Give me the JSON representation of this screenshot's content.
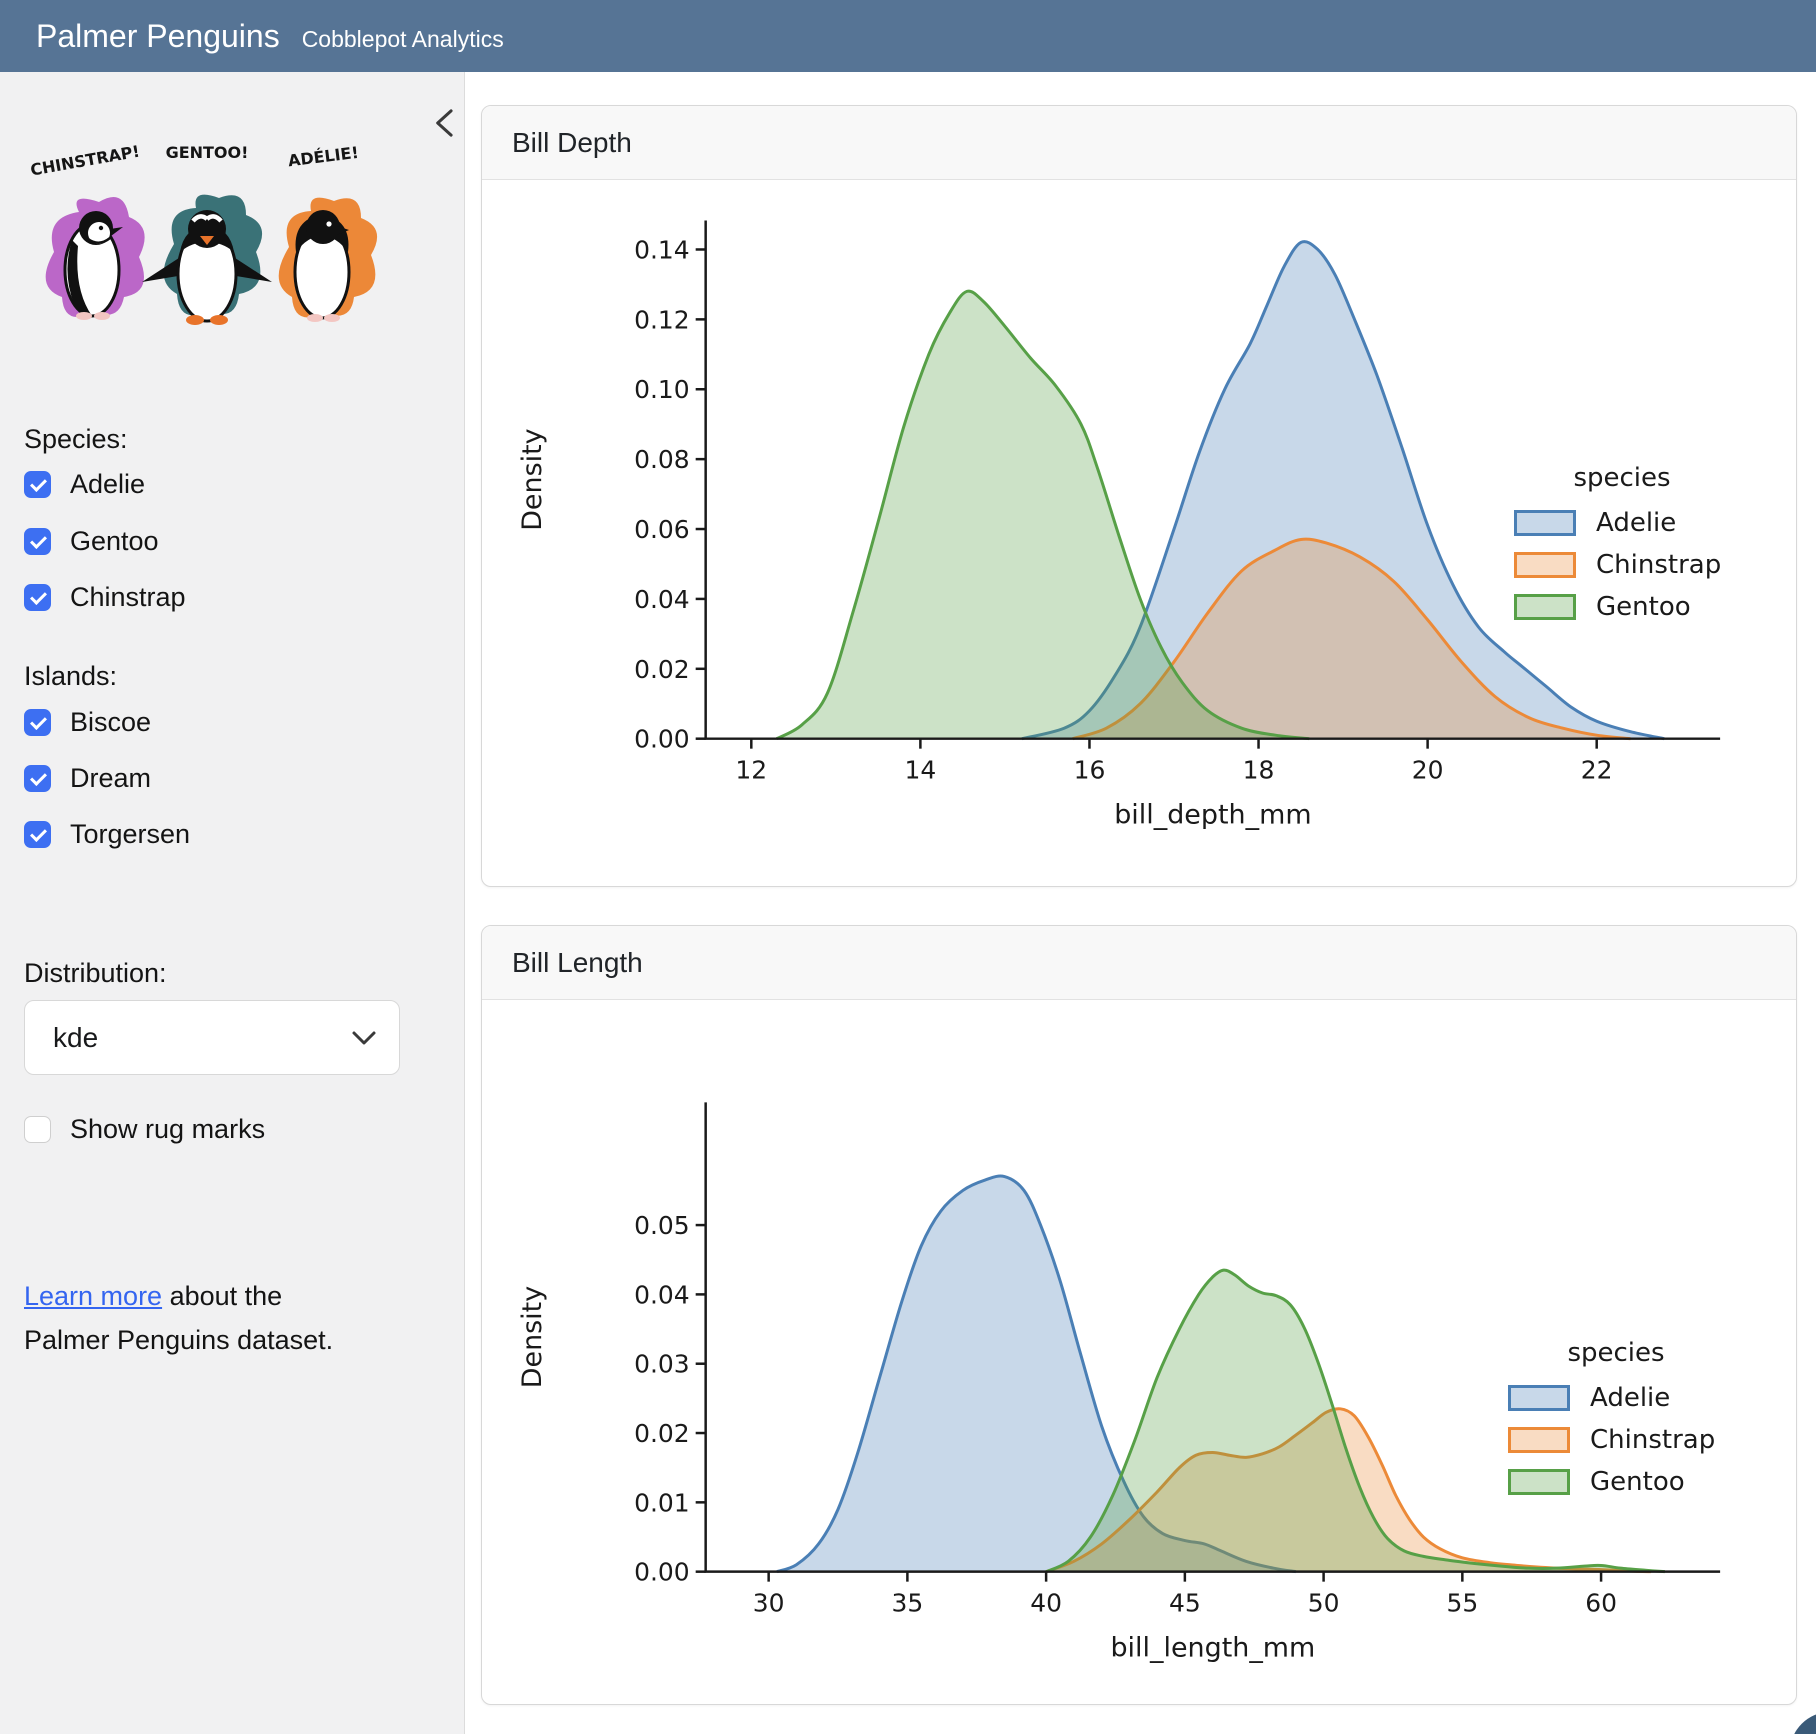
{
  "header": {
    "title": "Palmer Penguins",
    "subtitle": "Cobblepot Analytics"
  },
  "sidebar": {
    "art": {
      "labels": [
        "CHINSTRAP!",
        "GENTOO!",
        "ADÉLIE!"
      ],
      "splash_colors": [
        "#b353c2",
        "#2f6a70",
        "#ec7f28"
      ]
    },
    "species": {
      "label": "Species:",
      "items": [
        {
          "label": "Adelie",
          "checked": true
        },
        {
          "label": "Gentoo",
          "checked": true
        },
        {
          "label": "Chinstrap",
          "checked": true
        }
      ]
    },
    "islands": {
      "label": "Islands:",
      "items": [
        {
          "label": "Biscoe",
          "checked": true
        },
        {
          "label": "Dream",
          "checked": true
        },
        {
          "label": "Torgersen",
          "checked": true
        }
      ]
    },
    "distribution": {
      "label": "Distribution:",
      "value": "kde"
    },
    "rug": {
      "label": "Show rug marks",
      "checked": false
    },
    "learn_more": {
      "link_text": "Learn more",
      "text_after": " about the Palmer Penguins dataset."
    }
  },
  "colors": {
    "header_bg": "#567495",
    "checkbox_accent": "#3d6ff2",
    "link": "#3465f0"
  },
  "cards": [
    {
      "title": "Bill Depth",
      "chart_data": {
        "type": "area",
        "kind": "kde",
        "title": "",
        "xlabel": "bill_depth_mm",
        "ylabel": "Density",
        "xlim": [
          11.46,
          23.46
        ],
        "ylim": [
          0,
          0.1483
        ],
        "xticks": [
          12,
          14,
          16,
          18,
          20,
          22
        ],
        "yticks": [
          0,
          0.02,
          0.04,
          0.06,
          0.08,
          0.1,
          0.12,
          0.14
        ],
        "grid": false,
        "legend": {
          "title": "species",
          "position": "right",
          "entries": [
            "Adelie",
            "Chinstrap",
            "Gentoo"
          ]
        },
        "series": [
          {
            "name": "Adelie",
            "color": "#4a7fb5",
            "points": [
              [
                15.2,
                0
              ],
              [
                15.7,
                0.003
              ],
              [
                16.0,
                0.008
              ],
              [
                16.3,
                0.018
              ],
              [
                16.6,
                0.032
              ],
              [
                17.0,
                0.06
              ],
              [
                17.3,
                0.082
              ],
              [
                17.6,
                0.1
              ],
              [
                17.9,
                0.113
              ],
              [
                18.1,
                0.124
              ],
              [
                18.3,
                0.135
              ],
              [
                18.5,
                0.142
              ],
              [
                18.7,
                0.14
              ],
              [
                18.9,
                0.133
              ],
              [
                19.1,
                0.122
              ],
              [
                19.4,
                0.104
              ],
              [
                19.7,
                0.083
              ],
              [
                20.0,
                0.061
              ],
              [
                20.3,
                0.044
              ],
              [
                20.6,
                0.032
              ],
              [
                20.9,
                0.025
              ],
              [
                21.1,
                0.021
              ],
              [
                21.4,
                0.015
              ],
              [
                21.7,
                0.009
              ],
              [
                22.0,
                0.005
              ],
              [
                22.4,
                0.002
              ],
              [
                22.8,
                0
              ]
            ]
          },
          {
            "name": "Chinstrap",
            "color": "#ec8a38",
            "points": [
              [
                15.8,
                0
              ],
              [
                16.2,
                0.003
              ],
              [
                16.6,
                0.01
              ],
              [
                17.0,
                0.022
              ],
              [
                17.4,
                0.036
              ],
              [
                17.8,
                0.048
              ],
              [
                18.2,
                0.054
              ],
              [
                18.5,
                0.057
              ],
              [
                18.8,
                0.056
              ],
              [
                19.2,
                0.052
              ],
              [
                19.6,
                0.045
              ],
              [
                20.0,
                0.034
              ],
              [
                20.4,
                0.022
              ],
              [
                20.8,
                0.012
              ],
              [
                21.2,
                0.006
              ],
              [
                21.6,
                0.003
              ],
              [
                22.0,
                0.001
              ],
              [
                22.4,
                0
              ]
            ]
          },
          {
            "name": "Gentoo",
            "color": "#57a047",
            "points": [
              [
                12.3,
                0
              ],
              [
                12.6,
                0.004
              ],
              [
                12.9,
                0.013
              ],
              [
                13.2,
                0.036
              ],
              [
                13.5,
                0.062
              ],
              [
                13.8,
                0.089
              ],
              [
                14.1,
                0.11
              ],
              [
                14.35,
                0.122
              ],
              [
                14.55,
                0.128
              ],
              [
                14.75,
                0.125
              ],
              [
                15.0,
                0.118
              ],
              [
                15.3,
                0.109
              ],
              [
                15.6,
                0.101
              ],
              [
                15.9,
                0.09
              ],
              [
                16.1,
                0.077
              ],
              [
                16.35,
                0.058
              ],
              [
                16.6,
                0.04
              ],
              [
                16.85,
                0.026
              ],
              [
                17.1,
                0.016
              ],
              [
                17.4,
                0.008
              ],
              [
                17.8,
                0.003
              ],
              [
                18.2,
                0.001
              ],
              [
                18.6,
                0
              ]
            ]
          }
        ]
      }
    },
    {
      "title": "Bill Length",
      "chart_data": {
        "type": "area",
        "kind": "kde",
        "title": "",
        "xlabel": "bill_length_mm",
        "ylabel": "Density",
        "xlim": [
          27.73,
          64.29
        ],
        "ylim": [
          0,
          0.0677
        ],
        "xticks": [
          30,
          35,
          40,
          45,
          50,
          55,
          60
        ],
        "yticks": [
          0,
          0.01,
          0.02,
          0.03,
          0.04,
          0.05
        ],
        "grid": false,
        "legend": {
          "title": "species",
          "position": "right",
          "entries": [
            "Adelie",
            "Chinstrap",
            "Gentoo"
          ]
        },
        "series": [
          {
            "name": "Adelie",
            "color": "#4a7fb5",
            "points": [
              [
                30.3,
                0
              ],
              [
                31.0,
                0.001
              ],
              [
                31.8,
                0.004
              ],
              [
                32.5,
                0.009
              ],
              [
                33.2,
                0.017
              ],
              [
                34.0,
                0.028
              ],
              [
                34.8,
                0.039
              ],
              [
                35.5,
                0.047
              ],
              [
                36.2,
                0.052
              ],
              [
                37.0,
                0.055
              ],
              [
                37.8,
                0.0565
              ],
              [
                38.5,
                0.057
              ],
              [
                39.2,
                0.055
              ],
              [
                39.8,
                0.05
              ],
              [
                40.5,
                0.042
              ],
              [
                41.2,
                0.032
              ],
              [
                42.0,
                0.021
              ],
              [
                42.8,
                0.013
              ],
              [
                43.5,
                0.008
              ],
              [
                44.2,
                0.0055
              ],
              [
                45.0,
                0.0045
              ],
              [
                45.7,
                0.004
              ],
              [
                46.3,
                0.003
              ],
              [
                47.2,
                0.0015
              ],
              [
                48.2,
                0.0005
              ],
              [
                49.0,
                0
              ]
            ]
          },
          {
            "name": "Chinstrap",
            "color": "#ec8a38",
            "points": [
              [
                40.0,
                0
              ],
              [
                41.0,
                0.0015
              ],
              [
                42.0,
                0.004
              ],
              [
                43.0,
                0.0075
              ],
              [
                44.0,
                0.0115
              ],
              [
                44.8,
                0.015
              ],
              [
                45.4,
                0.0168
              ],
              [
                46.0,
                0.0172
              ],
              [
                46.6,
                0.0168
              ],
              [
                47.2,
                0.0165
              ],
              [
                47.8,
                0.017
              ],
              [
                48.4,
                0.018
              ],
              [
                49.0,
                0.0197
              ],
              [
                49.6,
                0.0215
              ],
              [
                50.1,
                0.023
              ],
              [
                50.6,
                0.0235
              ],
              [
                51.1,
                0.0225
              ],
              [
                51.6,
                0.0195
              ],
              [
                52.1,
                0.0155
              ],
              [
                52.6,
                0.011
              ],
              [
                53.1,
                0.0075
              ],
              [
                53.6,
                0.005
              ],
              [
                54.2,
                0.0033
              ],
              [
                55.0,
                0.002
              ],
              [
                56.0,
                0.0013
              ],
              [
                57.0,
                0.0009
              ],
              [
                58.0,
                0.0006
              ],
              [
                59.0,
                0.0004
              ],
              [
                60.0,
                0.0003
              ],
              [
                61.0,
                0.0001
              ],
              [
                61.8,
                0
              ]
            ]
          },
          {
            "name": "Gentoo",
            "color": "#57a047",
            "points": [
              [
                40.0,
                0
              ],
              [
                40.8,
                0.0015
              ],
              [
                41.6,
                0.005
              ],
              [
                42.4,
                0.011
              ],
              [
                43.2,
                0.019
              ],
              [
                44.0,
                0.028
              ],
              [
                44.8,
                0.035
              ],
              [
                45.5,
                0.04
              ],
              [
                46.0,
                0.0425
              ],
              [
                46.4,
                0.0435
              ],
              [
                46.8,
                0.0428
              ],
              [
                47.3,
                0.0412
              ],
              [
                47.8,
                0.0402
              ],
              [
                48.3,
                0.0398
              ],
              [
                48.8,
                0.0385
              ],
              [
                49.3,
                0.0352
              ],
              [
                49.8,
                0.0302
              ],
              [
                50.3,
                0.0242
              ],
              [
                50.8,
                0.0178
              ],
              [
                51.3,
                0.0122
              ],
              [
                51.8,
                0.0078
              ],
              [
                52.3,
                0.0048
              ],
              [
                52.9,
                0.003
              ],
              [
                53.6,
                0.0022
              ],
              [
                54.4,
                0.0017
              ],
              [
                55.4,
                0.0012
              ],
              [
                56.4,
                0.0008
              ],
              [
                57.4,
                0.0005
              ],
              [
                58.4,
                0.0005
              ],
              [
                59.4,
                0.0008
              ],
              [
                60.0,
                0.0009
              ],
              [
                60.7,
                0.0005
              ],
              [
                61.6,
                0.0002
              ],
              [
                62.3,
                0
              ]
            ]
          }
        ]
      }
    }
  ]
}
